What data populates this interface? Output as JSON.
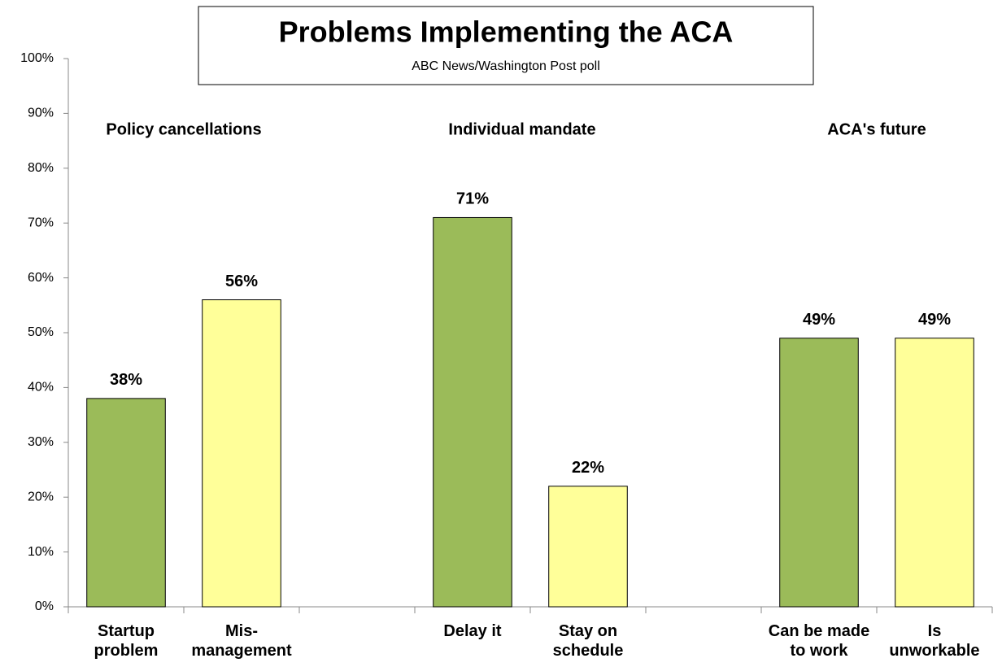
{
  "chart_data": {
    "type": "bar",
    "title": "Problems Implementing the ACA",
    "subtitle": "ABC News/Washington  Post poll",
    "annotations": [
      "Policy cancellations",
      "Individual mandate",
      "ACA's future"
    ],
    "categories": [
      "Startup\nproblem",
      "Mis-\nmanagement",
      null,
      "Delay it",
      "Stay on\nschedule",
      null,
      "Can be made\nto work",
      "Is\nunworkable"
    ],
    "values": [
      38,
      56,
      null,
      71,
      22,
      null,
      49,
      49
    ],
    "value_labels": [
      "38%",
      "56%",
      null,
      "71%",
      "22%",
      null,
      "49%",
      "49%"
    ],
    "colors": [
      "#9bbb59",
      "#ffff99",
      null,
      "#9bbb59",
      "#ffff99",
      null,
      "#9bbb59",
      "#ffff99"
    ],
    "ylim": [
      0,
      100
    ],
    "yticks": [
      {
        "value": 0,
        "label": "0%"
      },
      {
        "value": 10,
        "label": "10%"
      },
      {
        "value": 20,
        "label": "20%"
      },
      {
        "value": 30,
        "label": "30%"
      },
      {
        "value": 40,
        "label": "40%"
      },
      {
        "value": 50,
        "label": "50%"
      },
      {
        "value": 60,
        "label": "60%"
      },
      {
        "value": 70,
        "label": "70%"
      },
      {
        "value": 80,
        "label": "80%"
      },
      {
        "value": 90,
        "label": "90%"
      },
      {
        "value": 100,
        "label": "100%"
      }
    ]
  }
}
